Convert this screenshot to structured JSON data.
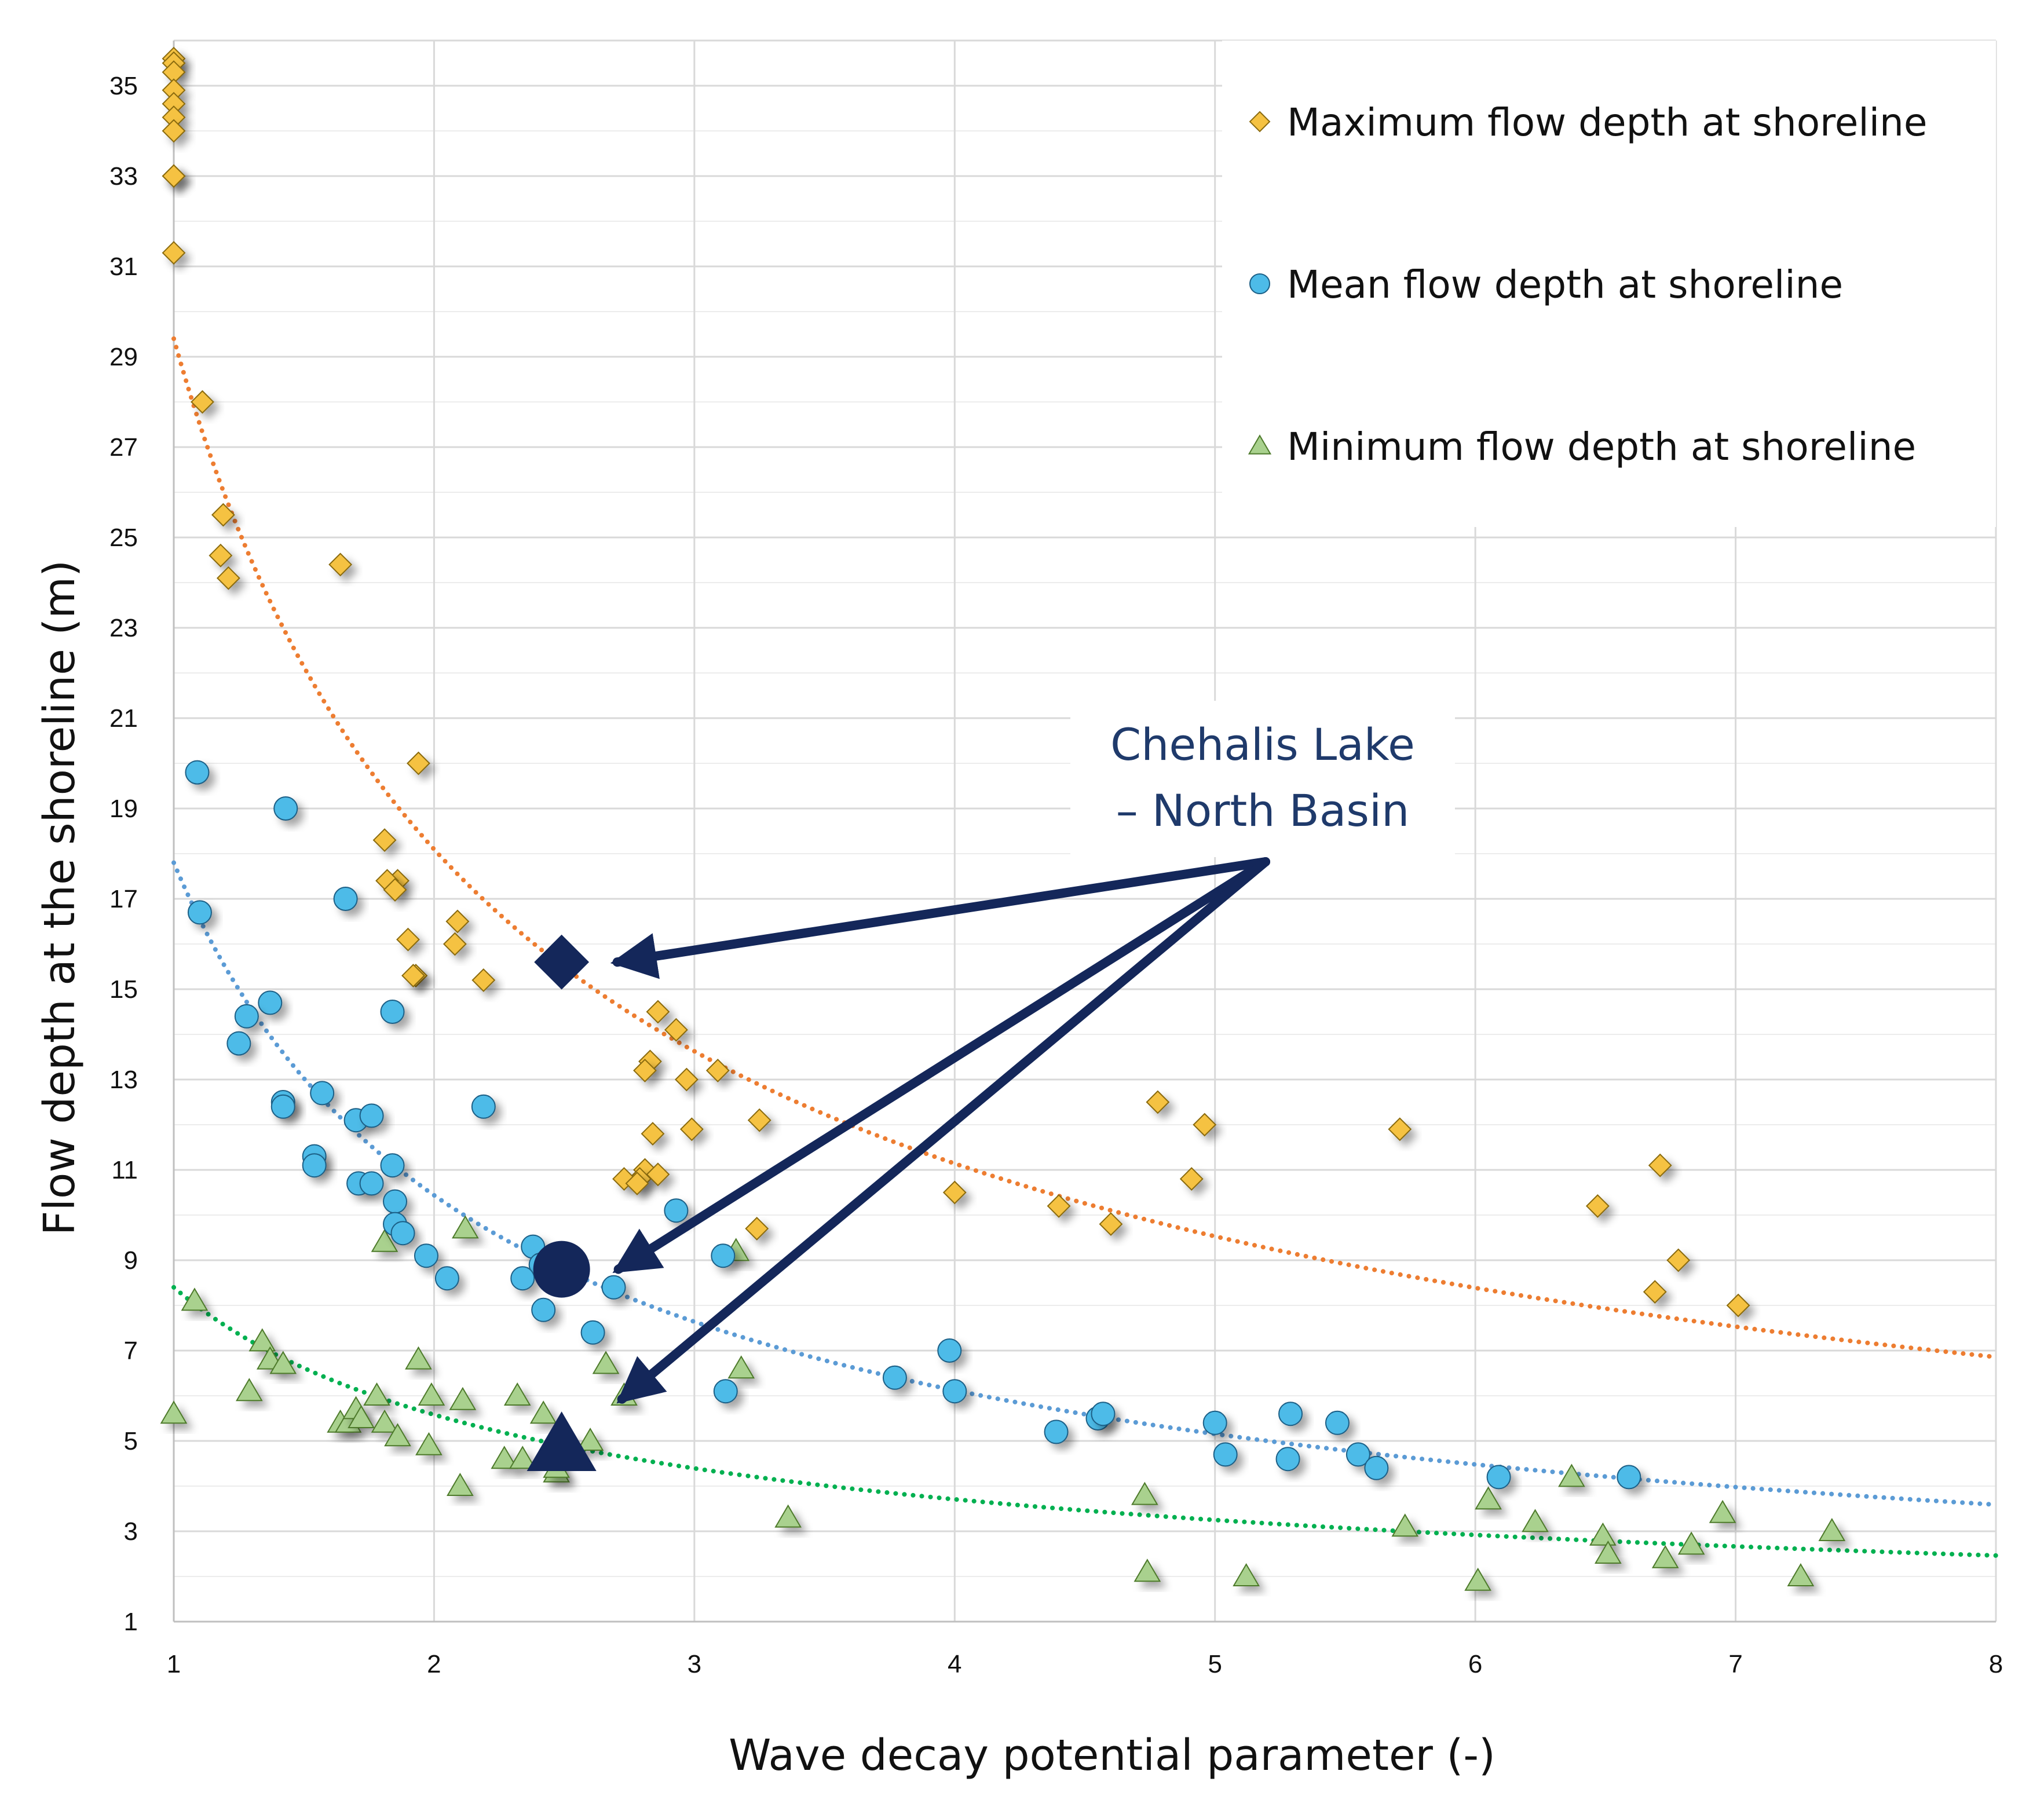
{
  "chart_data": {
    "type": "scatter",
    "xlabel": "Wave decay potential parameter (-)",
    "ylabel": "Flow depth at the shoreline (m)",
    "xlim": [
      1,
      8
    ],
    "ylim": [
      1,
      36
    ],
    "x_ticks": [
      "1",
      "2",
      "3",
      "4",
      "5",
      "6",
      "7",
      "8"
    ],
    "y_ticks": [
      "1",
      "3",
      "5",
      "7",
      "9",
      "11",
      "13",
      "15",
      "17",
      "19",
      "21",
      "23",
      "25",
      "27",
      "29",
      "31",
      "33",
      "35"
    ],
    "grid": true,
    "legend_position": "top-right",
    "legend": [
      {
        "label": "Maximum flow depth at shoreline",
        "series": "max"
      },
      {
        "label": "Mean flow depth at shoreline",
        "series": "mean"
      },
      {
        "label": "Minimum flow depth at shoreline",
        "series": "min"
      }
    ],
    "series": [
      {
        "key": "max",
        "marker": "diamond",
        "color": "#f5c242",
        "edge": "#8a6b10",
        "trend_color": "#ed7d31",
        "trend": {
          "a": 29.4,
          "b": -0.7
        },
        "x": [
          1.0,
          1.0,
          1.0,
          1.0,
          1.0,
          1.0,
          1.0,
          1.0,
          1.0,
          1.0,
          1.11,
          1.19,
          1.18,
          1.21,
          1.64,
          1.94,
          1.81,
          1.86,
          1.82,
          1.85,
          1.9,
          1.93,
          1.92,
          2.09,
          2.08,
          2.19,
          2.86,
          2.93,
          2.83,
          2.81,
          2.97,
          3.09,
          2.99,
          2.84,
          2.81,
          2.79,
          2.86,
          2.73,
          2.78,
          3.25,
          3.24,
          4.0,
          4.4,
          4.6,
          4.78,
          4.96,
          4.91,
          5.71,
          6.47,
          6.71,
          6.69,
          6.78,
          7.01
        ],
        "y": [
          35.6,
          35.5,
          35.3,
          34.9,
          34.6,
          34.3,
          34.0,
          33.0,
          33.0,
          31.3,
          28.0,
          25.5,
          24.6,
          24.1,
          24.4,
          20.0,
          18.3,
          17.4,
          17.4,
          17.2,
          16.1,
          15.3,
          15.3,
          16.5,
          16.0,
          15.2,
          14.5,
          14.1,
          13.4,
          13.2,
          13.0,
          13.2,
          11.9,
          11.8,
          11.0,
          10.8,
          10.9,
          10.8,
          10.7,
          12.1,
          9.7,
          10.5,
          10.2,
          9.8,
          12.5,
          12.0,
          10.8,
          11.9,
          10.2,
          11.1,
          8.3,
          9.0,
          8.0
        ]
      },
      {
        "key": "mean",
        "marker": "circle",
        "color": "#4dbbe8",
        "edge": "#1b5f86",
        "trend_color": "#5b9bd5",
        "trend": {
          "a": 17.8,
          "b": -0.77
        },
        "x": [
          1.09,
          1.1,
          1.43,
          1.66,
          1.37,
          1.28,
          1.25,
          1.84,
          1.42,
          1.42,
          1.57,
          1.7,
          1.76,
          2.19,
          1.54,
          1.54,
          1.84,
          1.71,
          1.76,
          1.85,
          1.85,
          1.88,
          1.97,
          2.05,
          2.38,
          2.41,
          2.47,
          2.34,
          2.42,
          2.69,
          2.61,
          2.93,
          3.11,
          3.12,
          3.77,
          3.98,
          4.0,
          4.39,
          4.55,
          4.57,
          5.0,
          5.04,
          5.29,
          5.28,
          5.47,
          5.55,
          5.62,
          6.09,
          6.59
        ],
        "y": [
          19.8,
          16.7,
          19.0,
          17.0,
          14.7,
          14.4,
          13.8,
          14.5,
          12.5,
          12.4,
          12.7,
          12.1,
          12.2,
          12.4,
          11.3,
          11.1,
          11.1,
          10.7,
          10.7,
          10.3,
          9.8,
          9.6,
          9.1,
          8.6,
          9.3,
          8.9,
          9.1,
          8.6,
          7.9,
          8.4,
          7.4,
          10.1,
          9.1,
          6.1,
          6.4,
          7.0,
          6.1,
          5.2,
          5.5,
          5.6,
          5.4,
          4.7,
          5.6,
          4.6,
          5.4,
          4.7,
          4.4,
          4.2,
          4.2
        ]
      },
      {
        "key": "min",
        "marker": "triangle",
        "color": "#a9d18e",
        "edge": "#4d7a2b",
        "trend_color": "#00b050",
        "trend": {
          "a": 8.4,
          "b": -0.59
        },
        "x": [
          1.0,
          1.08,
          1.34,
          1.37,
          1.42,
          1.29,
          1.64,
          1.67,
          1.7,
          1.72,
          1.78,
          1.81,
          1.86,
          1.94,
          1.98,
          1.99,
          1.81,
          2.12,
          2.11,
          2.1,
          2.27,
          2.32,
          2.34,
          2.42,
          2.47,
          2.47,
          2.53,
          2.6,
          2.66,
          2.73,
          3.16,
          3.18,
          3.36,
          4.73,
          4.74,
          5.12,
          5.73,
          6.01,
          6.05,
          6.23,
          6.37,
          6.49,
          6.51,
          6.73,
          6.83,
          6.95,
          7.25,
          7.37
        ],
        "y": [
          5.6,
          8.1,
          7.2,
          6.8,
          6.7,
          6.1,
          5.4,
          5.4,
          5.7,
          5.5,
          6.0,
          5.4,
          5.1,
          6.8,
          4.9,
          6.0,
          9.4,
          9.7,
          5.9,
          4.0,
          4.6,
          6.0,
          4.6,
          5.6,
          4.3,
          4.4,
          4.9,
          5.0,
          6.7,
          6.0,
          9.2,
          6.6,
          3.3,
          3.8,
          2.1,
          2.0,
          3.1,
          1.9,
          3.7,
          3.2,
          4.2,
          2.9,
          2.5,
          2.4,
          2.7,
          3.4,
          2.0,
          3.0
        ]
      }
    ],
    "highlight": {
      "label_lines": [
        "Chehalis Lake",
        "– North Basin"
      ],
      "color": "#14275a",
      "points": [
        {
          "series": "max",
          "x": 2.49,
          "y": 15.6
        },
        {
          "series": "mean",
          "x": 2.49,
          "y": 8.8
        },
        {
          "series": "min",
          "x": 2.49,
          "y": 4.9
        }
      ]
    }
  }
}
